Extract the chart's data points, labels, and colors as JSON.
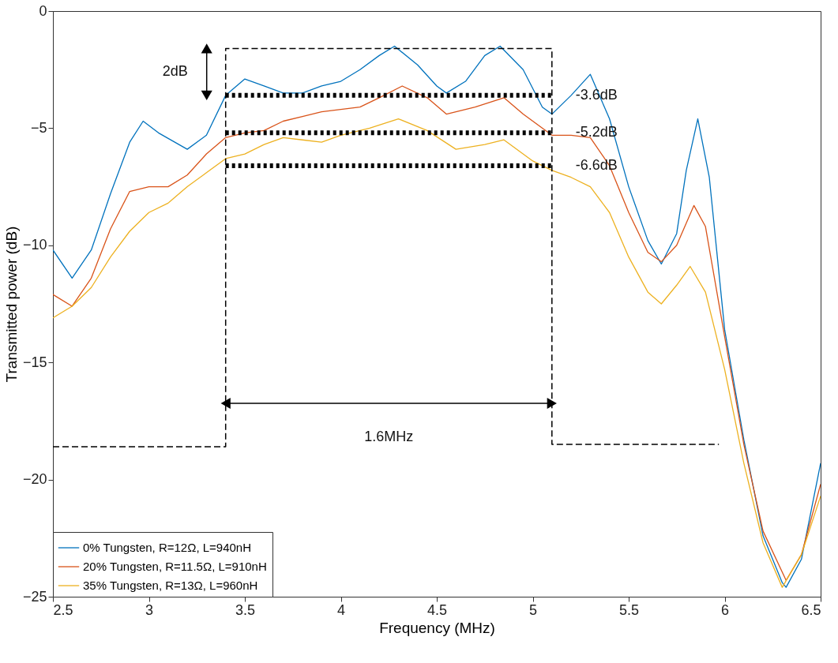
{
  "chart_data": {
    "type": "line",
    "xlabel": "Frequency (MHz)",
    "ylabel": "Transmitted power (dB)",
    "xlim": [
      2.5,
      6.5
    ],
    "xticks": [
      2.5,
      3,
      3.5,
      4,
      4.5,
      5,
      5.5,
      6,
      6.5
    ],
    "ylim": [
      -25,
      0
    ],
    "yticks": [
      -25,
      -20,
      -15,
      -10,
      -5,
      0
    ],
    "grid": false,
    "legend": "bottom left",
    "line_style": "solid",
    "marker": "none",
    "series": [
      {
        "name": "0% Tungsten, R=12Ω, L=940nH",
        "color": "#0072bd",
        "x": [
          2.5,
          2.6,
          2.7,
          2.8,
          2.9,
          2.97,
          3.05,
          3.2,
          3.3,
          3.4,
          3.5,
          3.6,
          3.7,
          3.8,
          3.9,
          4.0,
          4.1,
          4.2,
          4.28,
          4.4,
          4.5,
          4.55,
          4.65,
          4.75,
          4.83,
          4.95,
          5.05,
          5.1,
          5.2,
          5.3,
          5.4,
          5.5,
          5.6,
          5.67,
          5.75,
          5.8,
          5.86,
          5.92,
          6.0,
          6.1,
          6.2,
          6.3,
          6.32,
          6.4,
          6.5
        ],
        "values": [
          -10.2,
          -11.4,
          -10.2,
          -7.8,
          -5.6,
          -4.7,
          -5.2,
          -5.9,
          -5.3,
          -3.6,
          -2.9,
          -3.2,
          -3.5,
          -3.5,
          -3.2,
          -3.0,
          -2.5,
          -1.9,
          -1.5,
          -2.3,
          -3.2,
          -3.5,
          -3.0,
          -1.9,
          -1.5,
          -2.5,
          -4.1,
          -4.4,
          -3.6,
          -2.7,
          -4.6,
          -7.5,
          -9.8,
          -10.8,
          -9.5,
          -6.8,
          -4.6,
          -7.1,
          -13.6,
          -18.3,
          -22.4,
          -24.4,
          -24.6,
          -23.4,
          -19.3
        ]
      },
      {
        "name": "20% Tungsten, R=11.5Ω, L=910nH",
        "color": "#d95319",
        "x": [
          2.5,
          2.6,
          2.7,
          2.8,
          2.9,
          3.0,
          3.1,
          3.2,
          3.3,
          3.4,
          3.5,
          3.6,
          3.7,
          3.8,
          3.9,
          4.0,
          4.1,
          4.2,
          4.32,
          4.45,
          4.55,
          4.7,
          4.85,
          4.95,
          5.1,
          5.2,
          5.3,
          5.4,
          5.5,
          5.6,
          5.67,
          5.75,
          5.84,
          5.9,
          6.0,
          6.1,
          6.2,
          6.32,
          6.4,
          6.5
        ],
        "values": [
          -12.1,
          -12.6,
          -11.4,
          -9.3,
          -7.7,
          -7.5,
          -7.5,
          -7.0,
          -6.1,
          -5.4,
          -5.2,
          -5.1,
          -4.7,
          -4.5,
          -4.3,
          -4.2,
          -4.1,
          -3.7,
          -3.2,
          -3.7,
          -4.4,
          -4.1,
          -3.7,
          -4.4,
          -5.3,
          -5.3,
          -5.4,
          -6.6,
          -8.6,
          -10.3,
          -10.7,
          -10.0,
          -8.3,
          -9.2,
          -13.9,
          -18.5,
          -22.2,
          -24.3,
          -23.2,
          -20.2
        ]
      },
      {
        "name": "35% Tungsten, R=13Ω, L=960nH",
        "color": "#edb120",
        "x": [
          2.5,
          2.6,
          2.7,
          2.8,
          2.9,
          3.0,
          3.1,
          3.2,
          3.3,
          3.4,
          3.5,
          3.6,
          3.7,
          3.8,
          3.9,
          4.0,
          4.15,
          4.3,
          4.45,
          4.6,
          4.75,
          4.85,
          5.0,
          5.1,
          5.2,
          5.3,
          5.4,
          5.5,
          5.6,
          5.67,
          5.75,
          5.82,
          5.9,
          6.0,
          6.1,
          6.2,
          6.3,
          6.4,
          6.5
        ],
        "values": [
          -13.1,
          -12.6,
          -11.8,
          -10.5,
          -9.4,
          -8.6,
          -8.2,
          -7.5,
          -6.9,
          -6.3,
          -6.1,
          -5.7,
          -5.4,
          -5.5,
          -5.6,
          -5.3,
          -5.0,
          -4.6,
          -5.1,
          -5.9,
          -5.7,
          -5.5,
          -6.4,
          -6.8,
          -7.1,
          -7.5,
          -8.6,
          -10.5,
          -12.0,
          -12.5,
          -11.7,
          -10.9,
          -12.0,
          -15.3,
          -19.3,
          -22.7,
          -24.6,
          -23.2,
          -20.7
        ]
      },
      {
        "color": "#000000",
        "line_style": "dotted",
        "x": [
          3.4,
          5.1
        ],
        "values": [
          -3.6,
          -3.6
        ]
      },
      {
        "color": "#000000",
        "line_style": "dotted",
        "x": [
          3.4,
          5.1
        ],
        "values": [
          -5.2,
          -5.2
        ]
      },
      {
        "color": "#000000",
        "line_style": "dotted",
        "x": [
          3.4,
          5.1
        ],
        "values": [
          -6.6,
          -6.6
        ]
      },
      {
        "color": "#000000",
        "line_style": "dashed",
        "x": [
          2.5,
          3.4,
          3.4,
          5.1,
          5.1,
          5.97
        ],
        "values": [
          -18.6,
          -18.6,
          -1.6,
          -1.6,
          -18.5,
          -18.5
        ]
      }
    ],
    "annotations": [
      "2dB",
      "1.6MHz",
      "-3.6dB",
      "-5.2dB",
      "-6.6dB"
    ]
  }
}
